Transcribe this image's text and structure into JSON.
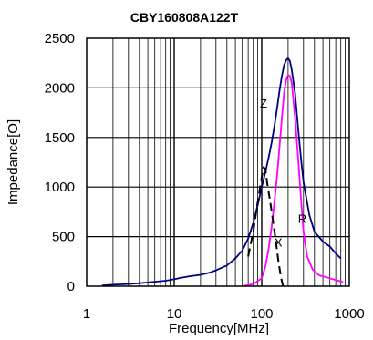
{
  "chart_data": {
    "type": "line",
    "title": "CBY160808A122T",
    "xlabel": "Frequency[MHz]",
    "ylabel": "Impedance[O]",
    "x_scale": "log",
    "xlim": [
      1,
      1000
    ],
    "ylim": [
      0,
      2500
    ],
    "x_ticks": [
      "1",
      "10",
      "100",
      "1000"
    ],
    "y_ticks": [
      "0",
      "500",
      "1000",
      "1500",
      "2000",
      "2500"
    ],
    "grid": true,
    "colors": {
      "Z": "#000080",
      "R": "#ff00ff",
      "X": "#000000"
    },
    "series": [
      {
        "name": "Z",
        "label_pos": [
          105,
          1800
        ],
        "points": [
          [
            1.5,
            8
          ],
          [
            2,
            15
          ],
          [
            3,
            22
          ],
          [
            4,
            30
          ],
          [
            5,
            38
          ],
          [
            6,
            45
          ],
          [
            8,
            55
          ],
          [
            10,
            70
          ],
          [
            12,
            85
          ],
          [
            15,
            100
          ],
          [
            20,
            115
          ],
          [
            25,
            135
          ],
          [
            30,
            160
          ],
          [
            40,
            210
          ],
          [
            50,
            280
          ],
          [
            60,
            360
          ],
          [
            70,
            480
          ],
          [
            80,
            640
          ],
          [
            90,
            820
          ],
          [
            100,
            1000
          ],
          [
            110,
            1150
          ],
          [
            120,
            1300
          ],
          [
            130,
            1450
          ],
          [
            140,
            1620
          ],
          [
            150,
            1800
          ],
          [
            160,
            1980
          ],
          [
            170,
            2120
          ],
          [
            180,
            2230
          ],
          [
            190,
            2280
          ],
          [
            200,
            2300
          ],
          [
            210,
            2270
          ],
          [
            220,
            2180
          ],
          [
            240,
            1950
          ],
          [
            260,
            1600
          ],
          [
            280,
            1300
          ],
          [
            300,
            1050
          ],
          [
            350,
            720
          ],
          [
            400,
            550
          ],
          [
            500,
            450
          ],
          [
            600,
            400
          ],
          [
            700,
            330
          ],
          [
            800,
            280
          ]
        ]
      },
      {
        "name": "R",
        "label_pos": [
          290,
          640
        ],
        "points": [
          [
            60,
            0
          ],
          [
            80,
            20
          ],
          [
            100,
            80
          ],
          [
            110,
            200
          ],
          [
            120,
            380
          ],
          [
            130,
            600
          ],
          [
            140,
            860
          ],
          [
            150,
            1120
          ],
          [
            160,
            1420
          ],
          [
            170,
            1700
          ],
          [
            180,
            1950
          ],
          [
            190,
            2080
          ],
          [
            200,
            2130
          ],
          [
            210,
            2120
          ],
          [
            220,
            2050
          ],
          [
            240,
            1700
          ],
          [
            260,
            1300
          ],
          [
            280,
            900
          ],
          [
            300,
            550
          ],
          [
            330,
            300
          ],
          [
            380,
            170
          ],
          [
            450,
            110
          ],
          [
            550,
            90
          ],
          [
            650,
            70
          ],
          [
            800,
            50
          ],
          [
            850,
            40
          ]
        ]
      },
      {
        "name": "X",
        "label_pos": [
          155,
          400
        ],
        "dashed": true,
        "points": [
          [
            70,
            300
          ],
          [
            80,
            550
          ],
          [
            90,
            850
          ],
          [
            100,
            1100
          ],
          [
            105,
            1200
          ],
          [
            110,
            1180
          ],
          [
            115,
            1050
          ],
          [
            125,
            850
          ],
          [
            135,
            650
          ],
          [
            145,
            450
          ],
          [
            155,
            250
          ],
          [
            165,
            100
          ],
          [
            175,
            0
          ]
        ]
      }
    ]
  }
}
